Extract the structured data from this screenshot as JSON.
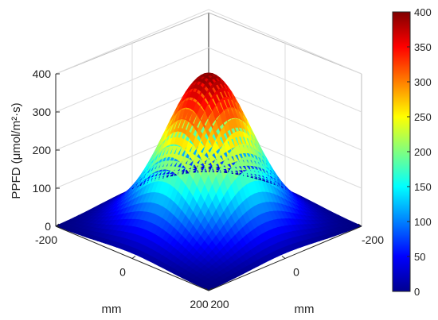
{
  "chart_data": {
    "type": "surface",
    "zlabel": "PPFD (μmol/m²·s)",
    "xlabel": "mm",
    "ylabel": "mm",
    "x_ticks": [
      "-200",
      "0",
      "200"
    ],
    "y_ticks": [
      "200",
      "0",
      "-200"
    ],
    "z_ticks": [
      "0",
      "100",
      "200",
      "300",
      "400"
    ],
    "xlim": [
      -200,
      200
    ],
    "ylim": [
      -200,
      200
    ],
    "zlim": [
      0,
      400
    ],
    "grid": true,
    "colormap": "jet",
    "colorbar": {
      "ticks": [
        "0",
        "50",
        "100",
        "150",
        "200",
        "250",
        "300",
        "350",
        "400"
      ],
      "range": [
        0,
        400
      ]
    },
    "surface": {
      "peak_value": 400,
      "peak_location": [
        0,
        0
      ],
      "corner_value": 0,
      "grid_x": [
        -200,
        -150,
        -100,
        -50,
        0,
        50,
        100,
        150,
        200
      ],
      "grid_y": [
        -200,
        -150,
        -100,
        -50,
        0,
        50,
        100,
        150,
        200
      ],
      "z_center_row": [
        0,
        30,
        90,
        250,
        400,
        250,
        90,
        30,
        0
      ],
      "z_edge_row": [
        0,
        5,
        15,
        28,
        32,
        28,
        15,
        5,
        0
      ]
    }
  }
}
